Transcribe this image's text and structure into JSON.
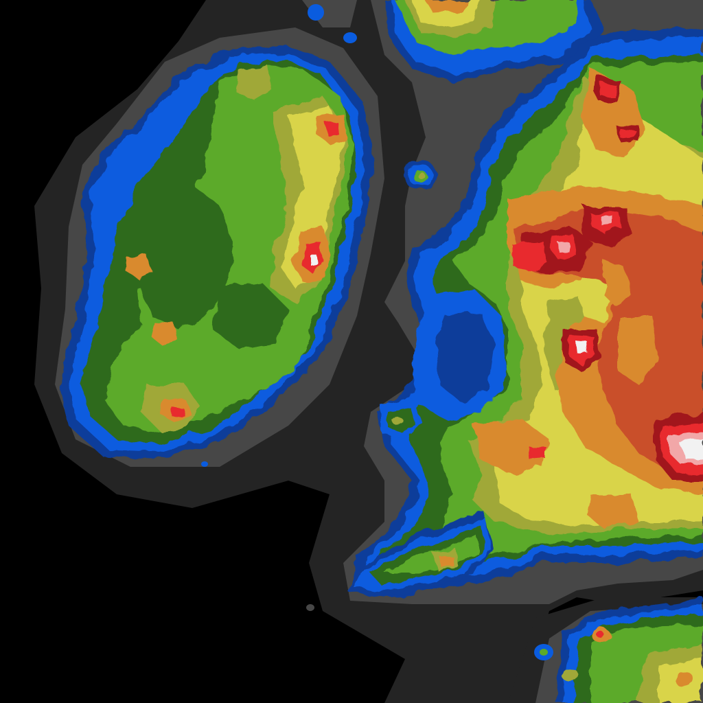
{
  "map": {
    "kind": "light-pollution-map",
    "colors": {
      "background": "#000000",
      "outer_halo": "#242424",
      "inner_halo": "#474747",
      "dark_blue": "#0a3c9a",
      "blue": "#0a5cdf",
      "dark_green": "#2e6b1c",
      "green": "#5caa2a",
      "olive": "#a0a838",
      "yellow": "#d9d448",
      "orange": "#d98a2e",
      "orange_red": "#c9502a",
      "red": "#e8292e",
      "dark_red": "#a1161b",
      "pink": "#f2a7a8",
      "white": "#f2f2f2"
    }
  }
}
